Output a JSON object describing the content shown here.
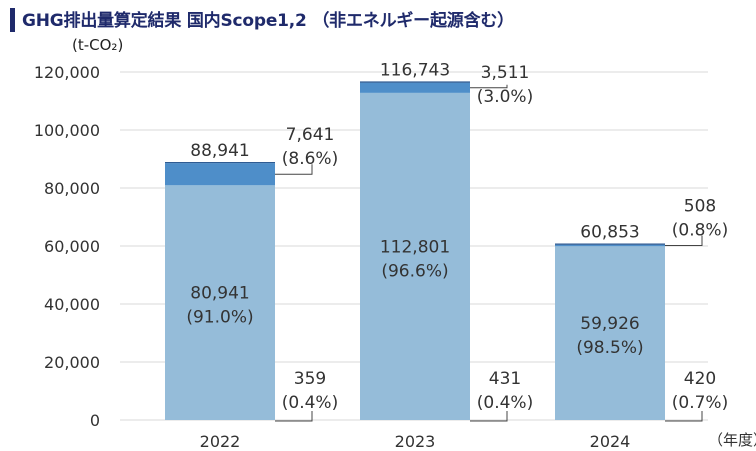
{
  "header": {
    "title": "GHG排出量算定結果 国内Scope1,2 （非エネルギー起源含む）",
    "unit": "(t-CO₂)",
    "accent_color": "#1f2a6b"
  },
  "chart_data": {
    "type": "bar",
    "stacked": true,
    "categories": [
      "2022",
      "2023",
      "2024"
    ],
    "x_unit_label": "（年度）",
    "ylim": [
      0,
      120000
    ],
    "yticks": [
      "0",
      "20,000",
      "40,000",
      "60,000",
      "80,000",
      "100,000",
      "120,000"
    ],
    "ytick_values": [
      0,
      20000,
      40000,
      60000,
      80000,
      100000,
      120000
    ],
    "grid": true,
    "colors": {
      "segment1": "#95bcd9",
      "segment2": "#4e8ec9",
      "segment3": "#1f4f8a"
    },
    "series": [
      {
        "values": [
          80941,
          112801,
          59926
        ]
      },
      {
        "values": [
          7641,
          3511,
          508
        ]
      },
      {
        "values": [
          359,
          431,
          420
        ]
      }
    ],
    "totals": [
      "88,941",
      "116,743",
      "60,853"
    ],
    "labels": {
      "segment1": [
        {
          "value": "80,941",
          "pct": "(91.0%)"
        },
        {
          "value": "112,801",
          "pct": "(96.6%)"
        },
        {
          "value": "59,926",
          "pct": "(98.5%)"
        }
      ],
      "segment2": [
        {
          "value": "7,641",
          "pct": "(8.6%)"
        },
        {
          "value": "3,511",
          "pct": "(3.0%)"
        },
        {
          "value": "508",
          "pct": "(0.8%)"
        }
      ],
      "segment3": [
        {
          "value": "359",
          "pct": "(0.4%)"
        },
        {
          "value": "431",
          "pct": "(0.4%)"
        },
        {
          "value": "420",
          "pct": "(0.7%)"
        }
      ]
    }
  }
}
